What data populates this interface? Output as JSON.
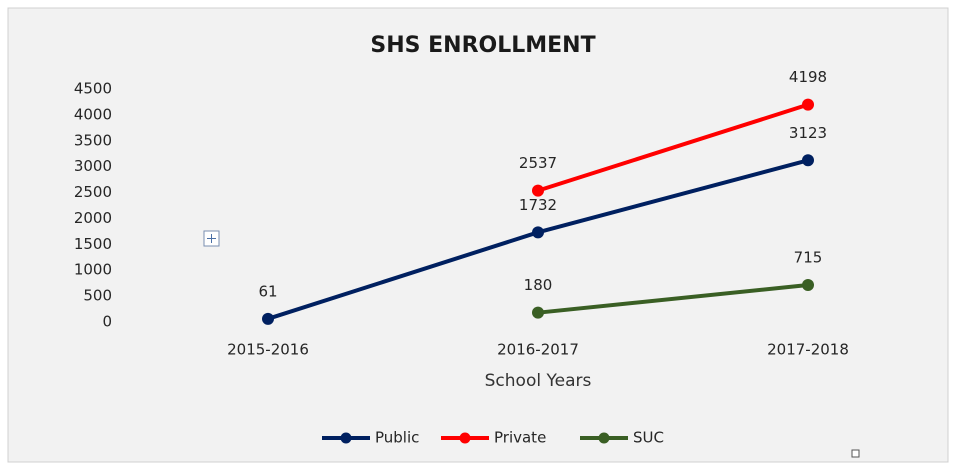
{
  "chart_data": {
    "type": "line",
    "title": "SHS ENROLLMENT",
    "x_label": "School Years",
    "categories": [
      "2015-2016",
      "2016-2017",
      "2017-2018"
    ],
    "series": [
      {
        "name": "Public",
        "color": "#002060",
        "values": [
          61,
          1732,
          3123
        ]
      },
      {
        "name": "Private",
        "color": "#ff0000",
        "values": [
          null,
          2537,
          4198
        ]
      },
      {
        "name": "SUC",
        "color": "#3a5f24",
        "values": [
          null,
          180,
          715
        ]
      }
    ],
    "ylim": [
      0,
      4500
    ],
    "yticks": [
      0,
      500,
      1000,
      1500,
      2000,
      2500,
      3000,
      3500,
      4000,
      4500
    ],
    "grid": false,
    "legend": "bottom"
  }
}
